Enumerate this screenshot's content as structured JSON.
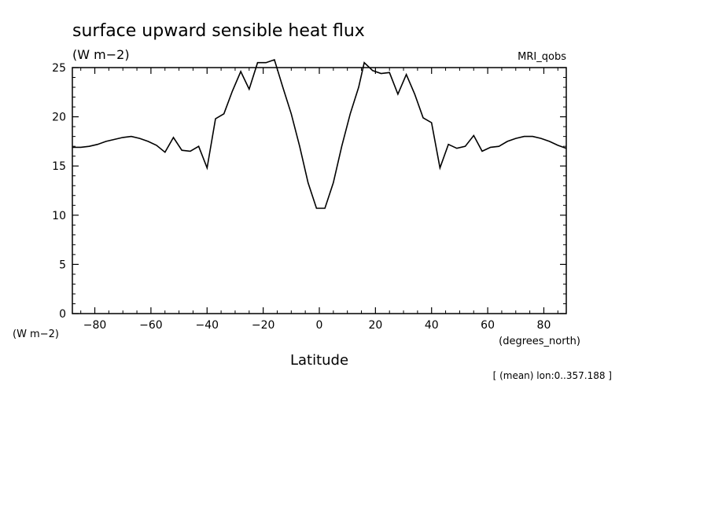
{
  "chart_data": {
    "type": "line",
    "title": "surface upward sensible heat flux",
    "units": "(W m−2)",
    "ylabel": "(W m−2)",
    "xlabel": "Latitude",
    "xunits": "(degrees_north)",
    "dataset_label": "MRI_qobs",
    "footnote": "[ (mean) lon:0..357.188 ]",
    "xlim": [
      -88,
      88
    ],
    "ylim": [
      0,
      25
    ],
    "xticks": [
      -80,
      -60,
      -40,
      -20,
      0,
      20,
      40,
      60,
      80
    ],
    "yticks": [
      0,
      5,
      10,
      15,
      20,
      25
    ],
    "grid": false,
    "series": [
      {
        "color": "#000000",
        "x": [
          -88,
          -85,
          -82,
          -79,
          -76,
          -73,
          -70,
          -67,
          -64,
          -61,
          -58,
          -55,
          -52,
          -49,
          -46,
          -43,
          -40,
          -37,
          -34,
          -31,
          -28,
          -25,
          -22,
          -19,
          -16,
          -13,
          -10,
          -7,
          -4,
          -1,
          2,
          5,
          8,
          11,
          14,
          16,
          19,
          22,
          25,
          28,
          31,
          34,
          37,
          40,
          43,
          46,
          49,
          52,
          55,
          58,
          61,
          64,
          67,
          70,
          73,
          76,
          79,
          82,
          85,
          88
        ],
        "y": [
          16.9,
          16.9,
          17.0,
          17.2,
          17.5,
          17.7,
          17.9,
          18.0,
          17.8,
          17.5,
          17.1,
          16.4,
          17.9,
          16.6,
          16.5,
          17.0,
          14.8,
          19.8,
          20.3,
          22.6,
          24.6,
          22.8,
          25.5,
          25.5,
          25.8,
          23.0,
          20.3,
          17.0,
          13.3,
          10.7,
          10.7,
          13.3,
          17.0,
          20.3,
          23.0,
          25.5,
          24.7,
          24.4,
          24.5,
          22.3,
          24.3,
          22.3,
          19.9,
          19.4,
          14.8,
          17.2,
          16.8,
          17.0,
          18.1,
          16.5,
          16.9,
          17.0,
          17.5,
          17.8,
          18.0,
          18.0,
          17.8,
          17.5,
          17.1,
          16.8
        ]
      }
    ]
  }
}
